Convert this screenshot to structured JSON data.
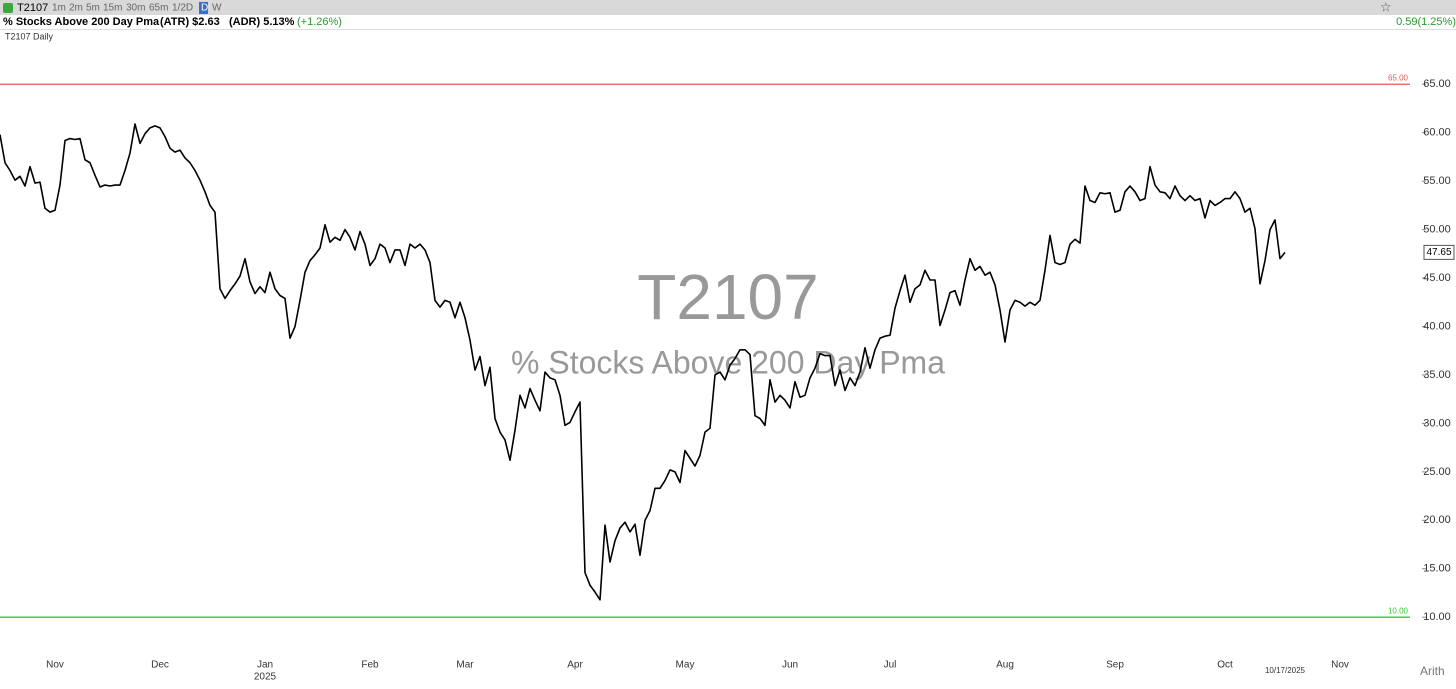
{
  "header": {
    "symbol": "T2107",
    "intervals": [
      "1m",
      "2m",
      "5m",
      "15m",
      "30m",
      "65m",
      "1/2D",
      "D",
      "W"
    ],
    "description": "% Stocks Above 200 Day Pma",
    "atr": "(ATR) $2.63",
    "adr": "(ADR) 5.13%",
    "change": "(+1.26%)",
    "right_change": "0.59(1.25%)",
    "chart_label": "T2107 Daily",
    "scale": "Arith"
  },
  "chart_data": {
    "type": "line",
    "title": "T2107",
    "subtitle": "% Stocks Above 200 Day Pma",
    "series": [
      {
        "name": "T2107",
        "color": "#000000",
        "values": [
          59.8,
          56.9,
          56.1,
          55.1,
          55.5,
          54.5,
          56.5,
          54.8,
          54.9,
          52.2,
          51.8,
          52.0,
          54.6,
          59.2,
          59.4,
          59.3,
          59.4,
          57.2,
          56.9,
          55.6,
          54.4,
          54.6,
          54.5,
          54.6,
          54.6,
          56.1,
          57.9,
          60.9,
          58.9,
          59.9,
          60.5,
          60.7,
          60.5,
          59.6,
          58.4,
          58.0,
          58.2,
          57.4,
          56.9,
          56.1,
          55.1,
          53.9,
          52.5,
          51.8,
          43.9,
          42.9,
          43.7,
          44.4,
          45.2,
          47.0,
          44.6,
          43.4,
          44.1,
          43.5,
          45.6,
          43.9,
          43.2,
          42.9,
          38.8,
          40.0,
          42.7,
          45.6,
          46.8,
          47.4,
          48.1,
          50.5,
          48.7,
          49.2,
          48.9,
          50.0,
          49.2,
          47.9,
          49.8,
          48.5,
          46.3,
          47.0,
          48.5,
          48.1,
          46.6,
          47.9,
          47.9,
          46.3,
          48.5,
          48.1,
          48.5,
          47.9,
          46.6,
          42.7,
          42.0,
          42.7,
          42.5,
          40.9,
          42.5,
          40.9,
          38.6,
          35.5,
          36.9,
          33.9,
          35.8,
          30.5,
          29.1,
          28.3,
          26.2,
          29.3,
          32.9,
          31.6,
          33.6,
          32.4,
          31.3,
          35.3,
          34.7,
          34.5,
          32.9,
          29.8,
          30.1,
          31.2,
          32.2,
          14.6,
          13.3,
          12.6,
          11.8,
          19.5,
          15.7,
          17.9,
          19.2,
          19.8,
          18.8,
          19.6,
          16.4,
          20.0,
          21.0,
          23.3,
          23.3,
          24.1,
          25.2,
          25.0,
          23.9,
          27.2,
          26.4,
          25.6,
          26.7,
          29.1,
          29.5,
          35.0,
          35.3,
          34.5,
          36.0,
          36.7,
          37.6,
          37.6,
          37.1,
          30.8,
          30.5,
          29.8,
          34.5,
          32.2,
          32.9,
          32.4,
          31.6,
          34.3,
          32.7,
          32.9,
          34.7,
          35.7,
          37.2,
          37.0,
          37.0,
          33.9,
          35.5,
          33.4,
          34.7,
          33.9,
          35.3,
          37.8,
          35.7,
          37.6,
          38.8,
          39.0,
          39.1,
          41.9,
          43.7,
          45.3,
          42.5,
          43.9,
          44.3,
          45.8,
          44.8,
          44.8,
          40.1,
          41.7,
          43.5,
          43.7,
          42.2,
          44.8,
          47.0,
          45.8,
          46.2,
          45.3,
          45.6,
          44.3,
          41.7,
          38.4,
          41.7,
          42.7,
          42.5,
          42.1,
          42.5,
          42.2,
          42.7,
          45.8,
          49.4,
          46.6,
          46.4,
          46.6,
          48.5,
          49.0,
          48.6,
          54.5,
          53.0,
          52.8,
          53.8,
          53.7,
          53.8,
          51.8,
          52.0,
          53.9,
          54.5,
          53.9,
          53.0,
          53.2,
          56.5,
          54.6,
          53.9,
          53.8,
          53.2,
          54.5,
          53.5,
          53.0,
          53.5,
          53.0,
          53.2,
          51.2,
          53.0,
          52.5,
          52.8,
          53.2,
          53.2,
          53.9,
          53.2,
          51.8,
          52.2,
          50.1,
          44.4,
          46.8,
          50.0,
          51.0,
          47.0,
          47.65
        ]
      }
    ],
    "xlim": [
      0,
      284
    ],
    "xticks": [
      {
        "value": 11,
        "label": "Nov"
      },
      {
        "value": 32,
        "label": "Dec"
      },
      {
        "value": 53,
        "label": "Jan"
      },
      {
        "value": 74,
        "label": "Feb"
      },
      {
        "value": 93,
        "label": "Mar"
      },
      {
        "value": 115,
        "label": "Apr"
      },
      {
        "value": 137,
        "label": "May"
      },
      {
        "value": 158,
        "label": "Jun"
      },
      {
        "value": 178,
        "label": "Jul"
      },
      {
        "value": 201,
        "label": "Aug"
      },
      {
        "value": 223,
        "label": "Sep"
      },
      {
        "value": 245,
        "label": "Oct"
      },
      {
        "value": 257,
        "label": "10/17/2025"
      },
      {
        "value": 268,
        "label": "Nov"
      }
    ],
    "year_labels": [
      {
        "value": 53,
        "label": "2025"
      }
    ],
    "ylim": [
      6.1,
      70.6
    ],
    "yticks": [
      {
        "value": 10,
        "label": "10.00"
      },
      {
        "value": 15,
        "label": "15.00"
      },
      {
        "value": 20,
        "label": "20.00"
      },
      {
        "value": 25,
        "label": "25.00"
      },
      {
        "value": 30,
        "label": "30.00"
      },
      {
        "value": 35,
        "label": "35.00"
      },
      {
        "value": 40,
        "label": "40.00"
      },
      {
        "value": 45,
        "label": "45.00"
      },
      {
        "value": 50,
        "label": "50.00"
      },
      {
        "value": 55,
        "label": "55.00"
      },
      {
        "value": 60,
        "label": "60.00"
      },
      {
        "value": 65,
        "label": "65.00"
      }
    ],
    "reference_lines": [
      {
        "value": 65,
        "label": "65.00",
        "color": "#e05a5a"
      },
      {
        "value": 10,
        "label": "10.00",
        "color": "#33cc33"
      }
    ],
    "grid": false
  }
}
